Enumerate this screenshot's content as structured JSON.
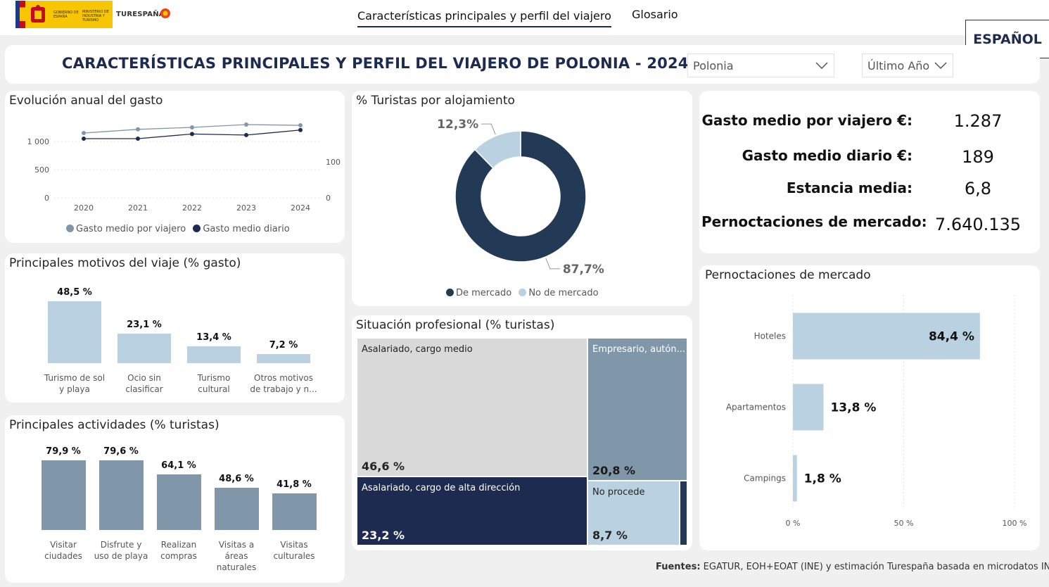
{
  "header": {
    "logo_gov": "GOBIERNO DE ESPAÑA",
    "logo_ministry": "MINISTERIO DE INDUSTRIA Y TURISMO",
    "brand": "TURESPAÑA",
    "nav": [
      "Características principales y perfil del viajero",
      "Glosario"
    ],
    "language": "ESPAÑOL"
  },
  "title": "CARACTERÍSTICAS PRINCIPALES Y PERFIL DEL VIAJERO DE POLONIA - 2024",
  "filters": {
    "country": "Polonia",
    "period": "Último Año"
  },
  "colors": {
    "navy": "#1e2b50",
    "dark_blue": "#233a56",
    "light_blue": "#b9d1e0",
    "steel": "#8096a9",
    "gray": "#d9d9d9"
  },
  "kpis": [
    {
      "label": "Gasto medio por viajero €:",
      "value": "1.287"
    },
    {
      "label": "Gasto medio diario €:",
      "value": "189"
    },
    {
      "label": "Estancia media:",
      "value": "6,8"
    },
    {
      "label": "Pernoctaciones de mercado:",
      "value": "7.640.135"
    }
  ],
  "footer": {
    "bold": "Fuentes:",
    "text": " EGATUR, EOH+EOAT (INE) y estimación Turespaña basada en microdatos INE"
  },
  "chart_data": [
    {
      "id": "evolucion",
      "type": "line",
      "title": "Evolución anual del gasto",
      "x": [
        "2020",
        "2021",
        "2022",
        "2023",
        "2024"
      ],
      "left_ticks": [
        "0",
        "500",
        "1 000"
      ],
      "right_ticks": [
        "0",
        "100"
      ],
      "ylim_left": [
        0,
        1400
      ],
      "ylim_right": [
        0,
        220
      ],
      "series": [
        {
          "name": "Gasto medio por viajero",
          "axis": "left",
          "color": "#8096a9",
          "values": [
            1150,
            1215,
            1250,
            1300,
            1287
          ]
        },
        {
          "name": "Gasto medio diario",
          "axis": "right",
          "color": "#1e2b50",
          "values": [
            165,
            165,
            178,
            175,
            189
          ]
        }
      ]
    },
    {
      "id": "alojamiento",
      "type": "pie",
      "title": "% Turistas por alojamiento",
      "slices": [
        {
          "name": "De mercado",
          "value": 87.7,
          "label": "87,7%",
          "color": "#233a56"
        },
        {
          "name": "No de mercado",
          "value": 12.3,
          "label": "12,3%",
          "color": "#b9d1e0"
        }
      ]
    },
    {
      "id": "motivos",
      "type": "bar",
      "title": "Principales motivos del viaje (% gasto)",
      "categories": [
        "Turismo de sol y playa",
        "Ocio sin clasificar",
        "Turismo cultural",
        "Otros motivos de trabajo y n..."
      ],
      "category_lines": [
        [
          "Turismo de sol",
          "y playa"
        ],
        [
          "Ocio sin",
          "clasificar"
        ],
        [
          "Turismo",
          "cultural"
        ],
        [
          "Otros motivos",
          "de trabajo y n..."
        ]
      ],
      "values": [
        48.5,
        23.1,
        13.4,
        7.2
      ],
      "labels": [
        "48,5 %",
        "23,1 %",
        "13,4 %",
        "7,2 %"
      ],
      "color": "#b9d1e0"
    },
    {
      "id": "actividades",
      "type": "bar",
      "title": "Principales actividades (% turistas)",
      "categories": [
        "Visitar ciudades",
        "Disfrute y uso de playa",
        "Realizan compras",
        "Visitas a áreas naturales",
        "Visitas culturales"
      ],
      "category_lines": [
        [
          "Visitar",
          "ciudades"
        ],
        [
          "Disfrute y",
          "uso de playa"
        ],
        [
          "Realizan",
          "compras"
        ],
        [
          "Visitas a",
          "áreas",
          "naturales"
        ],
        [
          "Visitas",
          "culturales"
        ]
      ],
      "values": [
        79.9,
        79.6,
        64.1,
        48.6,
        41.8
      ],
      "labels": [
        "79,9 %",
        "79,6 %",
        "64,1 %",
        "48,6 %",
        "41,8 %"
      ],
      "color": "#8096a9"
    },
    {
      "id": "situacion",
      "type": "treemap",
      "title": "Situación profesional (% turistas)",
      "items": [
        {
          "name": "Asalariado, cargo medio",
          "value": 46.6,
          "label": "46,6 %"
        },
        {
          "name": "Empresario, autón...",
          "value": 20.8,
          "label": "20,8 %"
        },
        {
          "name": "Asalariado, cargo de alta dirección",
          "value": 23.2,
          "label": "23,2 %"
        },
        {
          "name": "No procede",
          "value": 8.7,
          "label": "8,7 %"
        },
        {
          "name": "",
          "value": 0.7,
          "label": ""
        }
      ]
    },
    {
      "id": "pernoctaciones",
      "type": "bar",
      "orientation": "horizontal",
      "title": "Pernoctaciones de mercado",
      "categories": [
        "Hoteles",
        "Apartamentos",
        "Campings"
      ],
      "values": [
        84.4,
        13.8,
        1.8
      ],
      "labels": [
        "84,4 %",
        "13,8 %",
        "1,8 %"
      ],
      "ticks": [
        "0 %",
        "50 %",
        "100 %"
      ],
      "xlim": [
        0,
        100
      ],
      "color": "#b9d1e0"
    }
  ]
}
